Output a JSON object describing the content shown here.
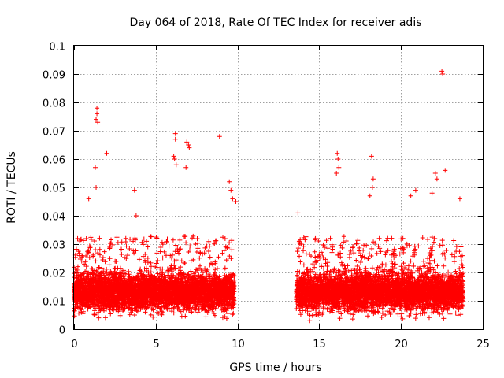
{
  "chart_data": {
    "type": "scatter",
    "title": "Day 064 of 2018, Rate Of TEC Index for receiver adis",
    "xlabel": "GPS time / hours",
    "ylabel": "ROTI / TECUs",
    "xlim": [
      0,
      25
    ],
    "ylim": [
      0,
      0.1
    ],
    "grid": true,
    "marker": "+",
    "color": "#ff0000",
    "x_ticks": [
      0,
      5,
      10,
      15,
      20,
      25
    ],
    "x_tick_labels": [
      "0",
      "5",
      "10",
      "15",
      "20",
      "25"
    ],
    "y_ticks": [
      0,
      0.01,
      0.02,
      0.03,
      0.04,
      0.05,
      0.06,
      0.07,
      0.08,
      0.09,
      0.1
    ],
    "y_tick_labels": [
      "0",
      "0.01",
      "0.02",
      "0.03",
      "0.04",
      "0.05",
      "0.06",
      "0.07",
      "0.08",
      "0.09",
      "0.1"
    ],
    "series": [
      {
        "name": "ROTI",
        "segments": [
          {
            "x_start": 0.0,
            "x_end": 9.8,
            "median": 0.013,
            "spread": 0.005,
            "upper": 0.031
          },
          {
            "x_start": 13.6,
            "x_end": 23.8,
            "median": 0.013,
            "spread": 0.005,
            "upper": 0.031
          }
        ],
        "x": [
          1.4,
          1.4,
          1.35,
          1.45,
          1.3,
          1.35,
          2.0,
          0.9,
          3.7,
          3.8,
          6.2,
          6.2,
          6.1,
          6.15,
          6.25,
          6.9,
          7.0,
          7.05,
          6.85,
          8.9,
          9.5,
          9.6,
          9.7,
          16.1,
          16.15,
          16.2,
          16.05,
          18.2,
          18.3,
          18.25,
          18.1,
          22.1,
          22.2,
          22.5,
          22.55,
          22.7,
          23.6,
          21.9,
          20.9,
          20.6,
          13.7,
          9.9
        ],
        "y": [
          0.078,
          0.076,
          0.074,
          0.073,
          0.057,
          0.05,
          0.062,
          0.046,
          0.049,
          0.04,
          0.069,
          0.067,
          0.061,
          0.06,
          0.058,
          0.066,
          0.065,
          0.064,
          0.057,
          0.068,
          0.052,
          0.049,
          0.046,
          0.062,
          0.06,
          0.057,
          0.055,
          0.061,
          0.053,
          0.05,
          0.047,
          0.055,
          0.053,
          0.091,
          0.09,
          0.056,
          0.046,
          0.048,
          0.049,
          0.047,
          0.041,
          0.045
        ]
      }
    ]
  }
}
